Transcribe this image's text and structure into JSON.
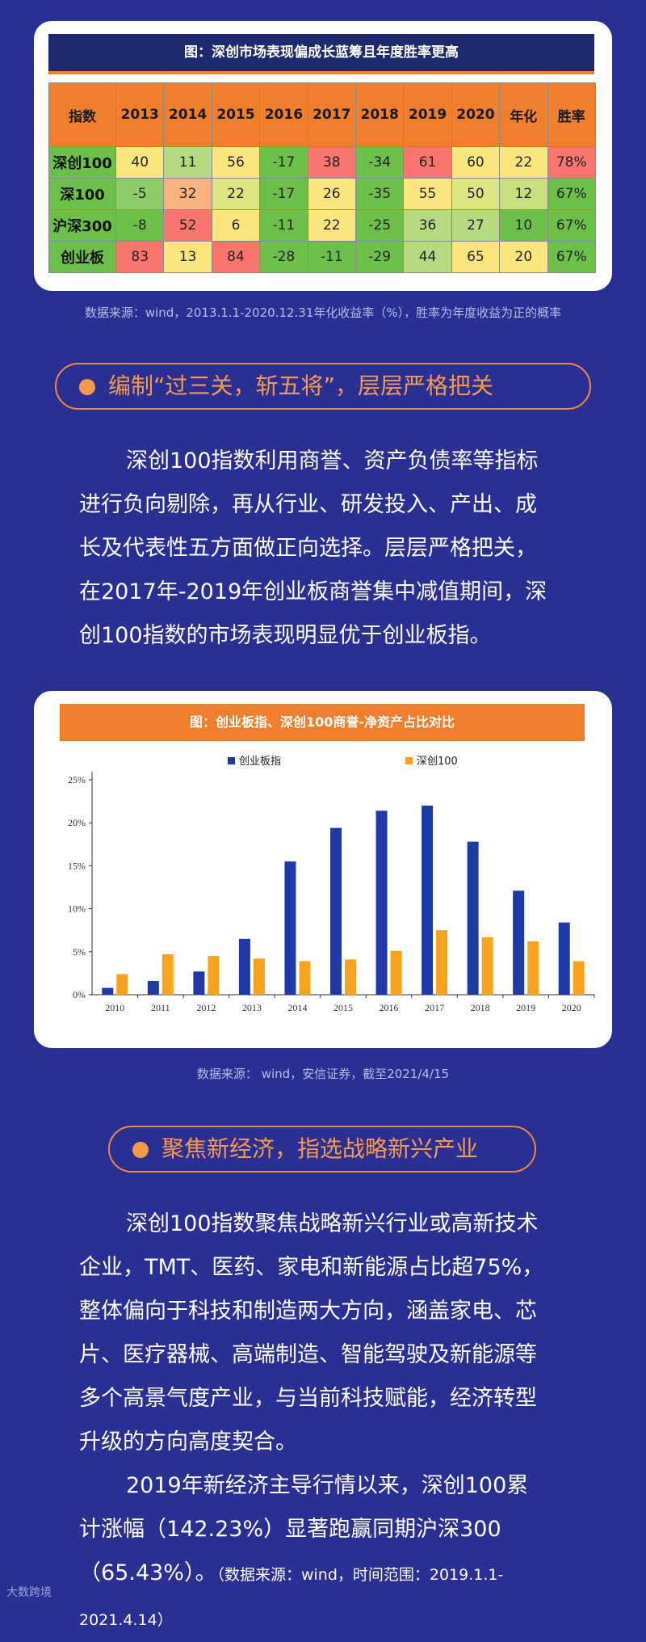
{
  "table_card": {
    "title": "图：深创市场表现偏成长蓝筹且年度胜率更高",
    "headers": [
      "指数",
      "2013",
      "2014",
      "2015",
      "2016",
      "2017",
      "2018",
      "2019",
      "2020",
      "年化",
      "胜率"
    ],
    "rows": [
      {
        "name": "深创100",
        "values": [
          "40",
          "11",
          "56",
          "-17",
          "38",
          "-34",
          "61",
          "60",
          "22",
          "78%"
        ],
        "colors": [
          "#fbe67e",
          "#b7da80",
          "#fbe67e",
          "#6cbf49",
          "#f8766d",
          "#6cbf49",
          "#f8766d",
          "#fbe67e",
          "#fbe67e",
          "#f8766d"
        ]
      },
      {
        "name": "深100",
        "values": [
          "-5",
          "32",
          "22",
          "-17",
          "26",
          "-35",
          "55",
          "50",
          "12",
          "67%"
        ],
        "colors": [
          "#8dcb6b",
          "#f8b27b",
          "#dbe582",
          "#6cbf49",
          "#fbe67e",
          "#6cbf49",
          "#fbe67e",
          "#dbe582",
          "#c8df7f",
          "#6cbf49"
        ]
      },
      {
        "name": "沪深300",
        "values": [
          "-8",
          "52",
          "6",
          "-11",
          "22",
          "-25",
          "36",
          "27",
          "10",
          "67%"
        ],
        "colors": [
          "#6cbf49",
          "#f8766d",
          "#fbe67e",
          "#6cbf49",
          "#fbe67e",
          "#6cbf49",
          "#b7da80",
          "#b7da80",
          "#6cbf49",
          "#6cbf49"
        ]
      },
      {
        "name": "创业板",
        "values": [
          "83",
          "13",
          "84",
          "-28",
          "-11",
          "-29",
          "44",
          "65",
          "20",
          "67%"
        ],
        "colors": [
          "#f8766d",
          "#fbe67e",
          "#f8766d",
          "#6cbf49",
          "#6cbf49",
          "#6cbf49",
          "#b7da80",
          "#fbe67e",
          "#fbe67e",
          "#6cbf49"
        ]
      }
    ],
    "source": "数据来源：wind，2013.1.1-2020.12.31年化收益率（%），胜率为年度收益为正的概率"
  },
  "section1": {
    "heading": "编制“过三关，斩五将”，层层严格把关",
    "lines": [
      "深创100指数利用商誉、资产负债率等指标",
      "进行负向剔除，再从行业、研发投入、产出、成",
      "长及代表性五方面做正向选择。层层严格把关，",
      "在2017年-2019年创业板商誉集中减值期间，深",
      "创100指数的市场表现明显优于创业板指。"
    ]
  },
  "chart_card": {
    "title": "图：创业板指、深创100商誉-净资产占比对比",
    "source": "数据来源： wind，安信证券，截至2021/4/15"
  },
  "chart_data": {
    "type": "bar",
    "title": "图：创业板指、深创100商誉-净资产占比对比",
    "categories": [
      "2010",
      "2011",
      "2012",
      "2013",
      "2014",
      "2015",
      "2016",
      "2017",
      "2018",
      "2019",
      "2020"
    ],
    "series": [
      {
        "name": "创业板指",
        "color": "#1e3aa8",
        "values": [
          0.8,
          1.6,
          2.7,
          6.5,
          15.5,
          19.4,
          21.4,
          22.0,
          17.8,
          12.1,
          8.4
        ]
      },
      {
        "name": "深创100",
        "color": "#f9a21b",
        "values": [
          2.4,
          4.7,
          4.5,
          4.2,
          3.9,
          4.1,
          5.1,
          7.5,
          6.7,
          6.2,
          3.9
        ]
      }
    ],
    "yticks": [
      "0%",
      "5%",
      "10%",
      "15%",
      "20%",
      "25%"
    ],
    "ylim": [
      0,
      25
    ],
    "legend": "top-center",
    "grid": false
  },
  "section2": {
    "heading": "聚焦新经济，指选战略新兴产业",
    "lines": [
      "深创100指数聚焦战略新兴行业或高新技术",
      "企业，TMT、医药、家电和新能源占比超75%，",
      "整体偏向于科技和制造两大方向，涵盖家电、芯",
      "片、医疗器械、高端制造、智能驾驶及新能源等",
      "多个高景气度产业，与当前科技赋能，经济转型",
      "升级的方向高度契合。",
      "2019年新经济主导行情以来，深创100累",
      "计涨幅（142.23%）显著跑赢同期沪深300",
      "（65.43%）。"
    ],
    "note": "（数据来源：wind，时间范围：2019.1.1-2021.4.14）"
  },
  "watermark": "大数跨境"
}
